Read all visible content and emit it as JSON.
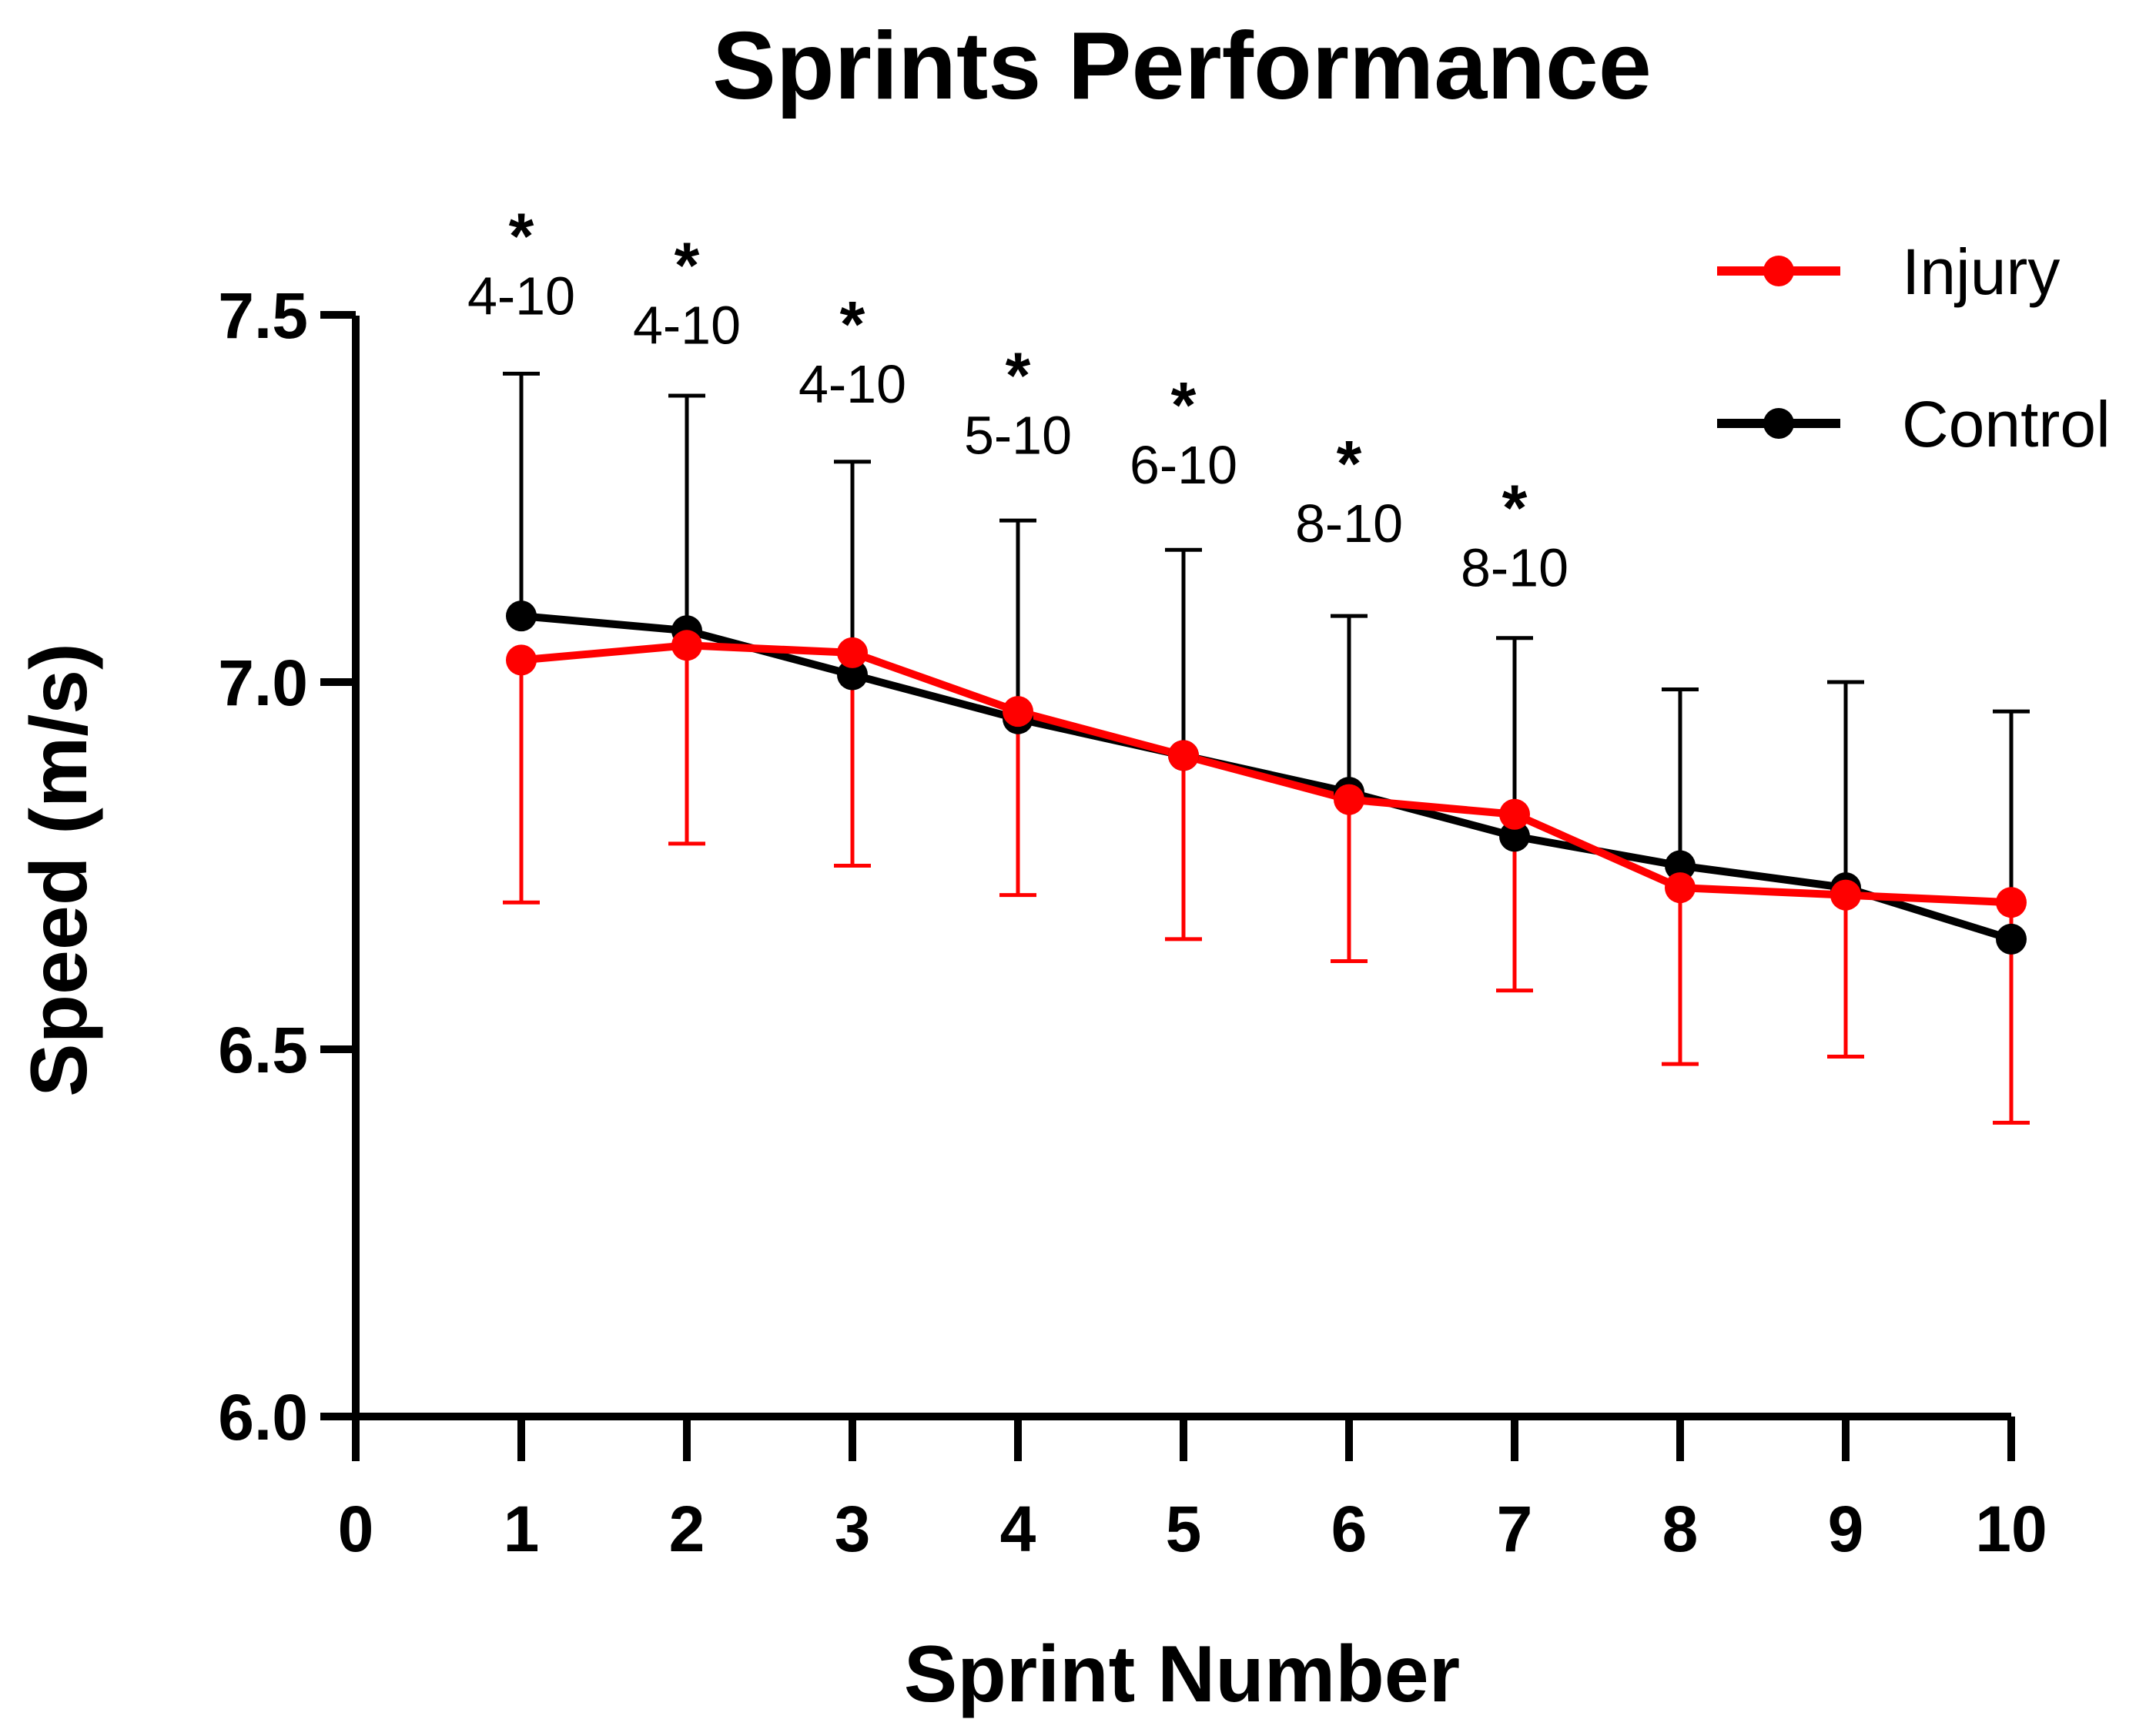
{
  "chart_data": {
    "type": "line",
    "title": "Sprints Performance",
    "xlabel": "Sprint Number",
    "ylabel": "Speed (m/s)",
    "xlim": [
      0,
      10
    ],
    "ylim": [
      6.0,
      7.5
    ],
    "x_ticks": [
      "0",
      "1",
      "2",
      "3",
      "4",
      "5",
      "6",
      "7",
      "8",
      "9",
      "10"
    ],
    "y_ticks": [
      "6.0",
      "6.5",
      "7.0",
      "7.5"
    ],
    "y_tick_values": [
      6.0,
      6.5,
      7.0,
      7.5
    ],
    "x": [
      1,
      2,
      3,
      4,
      5,
      6,
      7,
      8,
      9,
      10
    ],
    "grid": false,
    "legend_position": "top-right",
    "series": [
      {
        "name": "Control",
        "color": "#000000",
        "values": [
          7.09,
          7.07,
          7.01,
          6.95,
          6.9,
          6.85,
          6.79,
          6.75,
          6.72,
          6.65
        ],
        "error_upper": [
          7.42,
          7.39,
          7.3,
          7.22,
          7.18,
          7.09,
          7.06,
          6.99,
          7.0,
          6.96
        ],
        "error_direction": "up"
      },
      {
        "name": "Injury",
        "color": "#ff0000",
        "values": [
          7.03,
          7.05,
          7.04,
          6.96,
          6.9,
          6.84,
          6.82,
          6.72,
          6.71,
          6.7
        ],
        "error_lower": [
          6.7,
          6.78,
          6.75,
          6.71,
          6.65,
          6.62,
          6.58,
          6.48,
          6.49,
          6.4
        ],
        "error_direction": "down"
      }
    ],
    "annotations": [
      {
        "x": 1,
        "star": "*",
        "label": "4-10",
        "y": 7.53
      },
      {
        "x": 2,
        "star": "*",
        "label": "4-10",
        "y": 7.49
      },
      {
        "x": 3,
        "star": "*",
        "label": "4-10",
        "y": 7.41
      },
      {
        "x": 4,
        "star": "*",
        "label": "5-10",
        "y": 7.34
      },
      {
        "x": 5,
        "star": "*",
        "label": "6-10",
        "y": 7.3
      },
      {
        "x": 6,
        "star": "*",
        "label": "8-10",
        "y": 7.22
      },
      {
        "x": 7,
        "star": "*",
        "label": "8-10",
        "y": 7.16
      }
    ]
  }
}
